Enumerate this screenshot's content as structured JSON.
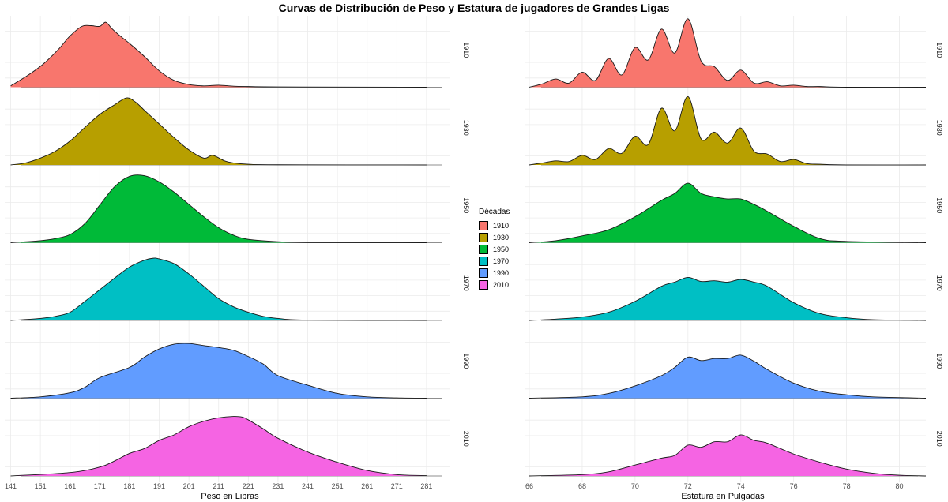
{
  "title": "Curvas de Distribución de Peso y Estatura de jugadores de Grandes Ligas",
  "legend": {
    "title": "Décadas",
    "items": [
      {
        "label": "1910",
        "color": "#F8766D"
      },
      {
        "label": "1930",
        "color": "#B79F00"
      },
      {
        "label": "1950",
        "color": "#00BA38"
      },
      {
        "label": "1970",
        "color": "#00BFC4"
      },
      {
        "label": "1990",
        "color": "#619CFF"
      },
      {
        "label": "2010",
        "color": "#F564E3"
      }
    ]
  },
  "chart_data": [
    {
      "type": "area",
      "xlabel": "Peso en Libras",
      "xlim": [
        139,
        289
      ],
      "xticks": [
        "141",
        "151",
        "161",
        "171",
        "181",
        "191",
        "201",
        "211",
        "221",
        "231",
        "241",
        "251",
        "261",
        "271",
        "281"
      ],
      "facets": [
        "1910",
        "1930",
        "1950",
        "1970",
        "1990",
        "2010"
      ],
      "series": [
        {
          "name": "1910",
          "x": [
            141,
            147,
            152,
            157,
            161,
            165,
            168,
            171,
            173,
            175,
            177,
            181,
            186,
            191,
            196,
            201,
            206,
            211,
            216,
            221,
            231,
            281
          ],
          "y": [
            0.02,
            0.18,
            0.34,
            0.55,
            0.75,
            0.89,
            0.9,
            0.89,
            0.95,
            0.86,
            0.78,
            0.64,
            0.45,
            0.24,
            0.1,
            0.04,
            0.02,
            0.03,
            0.015,
            0.01,
            0.005,
            0.0
          ]
        },
        {
          "name": "1930",
          "x": [
            141,
            146,
            151,
            156,
            161,
            166,
            171,
            176,
            180,
            183,
            186,
            191,
            196,
            201,
            206,
            209,
            213,
            216,
            221,
            231,
            281
          ],
          "y": [
            0.0,
            0.03,
            0.1,
            0.2,
            0.35,
            0.55,
            0.74,
            0.88,
            0.98,
            0.92,
            0.8,
            0.6,
            0.4,
            0.22,
            0.1,
            0.14,
            0.06,
            0.03,
            0.01,
            0.003,
            0.0
          ]
        },
        {
          "name": "1950",
          "x": [
            141,
            151,
            156,
            161,
            166,
            171,
            176,
            181,
            186,
            191,
            196,
            201,
            206,
            211,
            216,
            221,
            231,
            241,
            281
          ],
          "y": [
            0.0,
            0.03,
            0.06,
            0.12,
            0.28,
            0.55,
            0.82,
            0.97,
            0.98,
            0.89,
            0.74,
            0.56,
            0.38,
            0.22,
            0.11,
            0.05,
            0.015,
            0.003,
            0.0
          ]
        },
        {
          "name": "1970",
          "x": [
            141,
            151,
            156,
            161,
            166,
            171,
            176,
            181,
            186,
            189,
            191,
            196,
            201,
            206,
            211,
            216,
            221,
            226,
            231,
            241,
            281
          ],
          "y": [
            0.0,
            0.03,
            0.06,
            0.12,
            0.28,
            0.45,
            0.62,
            0.78,
            0.88,
            0.91,
            0.9,
            0.83,
            0.68,
            0.5,
            0.32,
            0.2,
            0.12,
            0.06,
            0.03,
            0.005,
            0.0
          ]
        },
        {
          "name": "1990",
          "x": [
            141,
            151,
            161,
            166,
            171,
            181,
            186,
            191,
            196,
            201,
            206,
            211,
            216,
            221,
            226,
            231,
            241,
            251,
            261,
            271,
            281
          ],
          "y": [
            0.0,
            0.02,
            0.08,
            0.16,
            0.3,
            0.45,
            0.6,
            0.72,
            0.79,
            0.8,
            0.77,
            0.74,
            0.7,
            0.61,
            0.5,
            0.33,
            0.19,
            0.07,
            0.02,
            0.005,
            0.0
          ]
        },
        {
          "name": "2010",
          "x": [
            141,
            161,
            171,
            176,
            181,
            186,
            191,
            196,
            201,
            206,
            211,
            216,
            219,
            221,
            226,
            231,
            241,
            251,
            261,
            271,
            281
          ],
          "y": [
            0.0,
            0.05,
            0.13,
            0.22,
            0.33,
            0.4,
            0.52,
            0.6,
            0.72,
            0.8,
            0.85,
            0.87,
            0.86,
            0.82,
            0.69,
            0.55,
            0.35,
            0.2,
            0.08,
            0.02,
            0.005
          ]
        }
      ]
    },
    {
      "type": "area",
      "xlabel": "Estatura en Pulgadas",
      "xlim": [
        65.85,
        81.0
      ],
      "xticks": [
        "66",
        "68",
        "70",
        "72",
        "74",
        "76",
        "78",
        "80"
      ],
      "facets": [
        "1910",
        "1930",
        "1950",
        "1970",
        "1990",
        "2010"
      ],
      "series": [
        {
          "name": "1910",
          "x": [
            66,
            66.5,
            67,
            67.5,
            68,
            68.5,
            69,
            69.5,
            70,
            70.5,
            71,
            71.5,
            72,
            72.5,
            73,
            73.5,
            74,
            74.5,
            75,
            75.5,
            76,
            76.5,
            77,
            78,
            81
          ],
          "y": [
            0.0,
            0.05,
            0.12,
            0.06,
            0.22,
            0.1,
            0.42,
            0.18,
            0.58,
            0.4,
            0.85,
            0.5,
            1.0,
            0.38,
            0.3,
            0.1,
            0.25,
            0.06,
            0.08,
            0.02,
            0.03,
            0.01,
            0.01,
            0.0,
            0.0
          ]
        },
        {
          "name": "1930",
          "x": [
            66,
            66.5,
            67,
            67.5,
            68,
            68.5,
            69,
            69.5,
            70,
            70.5,
            71,
            71.5,
            72,
            72.5,
            73,
            73.5,
            74,
            74.5,
            75,
            75.5,
            76,
            76.5,
            77,
            78,
            81
          ],
          "y": [
            0.0,
            0.03,
            0.06,
            0.05,
            0.14,
            0.08,
            0.24,
            0.17,
            0.42,
            0.3,
            0.83,
            0.5,
            1.0,
            0.38,
            0.48,
            0.32,
            0.54,
            0.2,
            0.16,
            0.05,
            0.08,
            0.02,
            0.01,
            0.0,
            0.0
          ]
        },
        {
          "name": "1950",
          "x": [
            66,
            67,
            68,
            69,
            70,
            71,
            71.5,
            72,
            72.5,
            73,
            73.5,
            74,
            74.5,
            75,
            76,
            77,
            78,
            81
          ],
          "y": [
            0.0,
            0.03,
            0.1,
            0.19,
            0.38,
            0.62,
            0.72,
            0.87,
            0.72,
            0.67,
            0.64,
            0.64,
            0.56,
            0.46,
            0.24,
            0.06,
            0.02,
            0.0
          ]
        },
        {
          "name": "1970",
          "x": [
            66,
            67,
            68,
            69,
            70,
            71,
            71.5,
            72,
            72.5,
            73,
            73.5,
            74,
            74.5,
            75,
            76,
            77,
            78,
            79,
            80,
            81
          ],
          "y": [
            0.0,
            0.02,
            0.05,
            0.12,
            0.28,
            0.5,
            0.56,
            0.63,
            0.57,
            0.58,
            0.56,
            0.6,
            0.56,
            0.5,
            0.26,
            0.1,
            0.04,
            0.01,
            0.005,
            0.0
          ]
        },
        {
          "name": "1990",
          "x": [
            66,
            68,
            69,
            70,
            71,
            71.5,
            72,
            72.5,
            73,
            73.5,
            74,
            74.5,
            75,
            76,
            77,
            78,
            79,
            81
          ],
          "y": [
            0.0,
            0.02,
            0.07,
            0.18,
            0.33,
            0.45,
            0.6,
            0.55,
            0.58,
            0.58,
            0.63,
            0.54,
            0.42,
            0.22,
            0.1,
            0.05,
            0.02,
            0.0
          ]
        },
        {
          "name": "2010",
          "x": [
            66,
            68,
            69,
            70,
            71,
            71.5,
            72,
            72.5,
            73,
            73.5,
            74,
            74.5,
            75,
            76,
            77,
            78,
            79,
            80,
            81
          ],
          "y": [
            0.0,
            0.02,
            0.06,
            0.16,
            0.26,
            0.3,
            0.45,
            0.42,
            0.5,
            0.5,
            0.6,
            0.52,
            0.48,
            0.32,
            0.2,
            0.1,
            0.04,
            0.01,
            0.0
          ]
        }
      ]
    }
  ]
}
